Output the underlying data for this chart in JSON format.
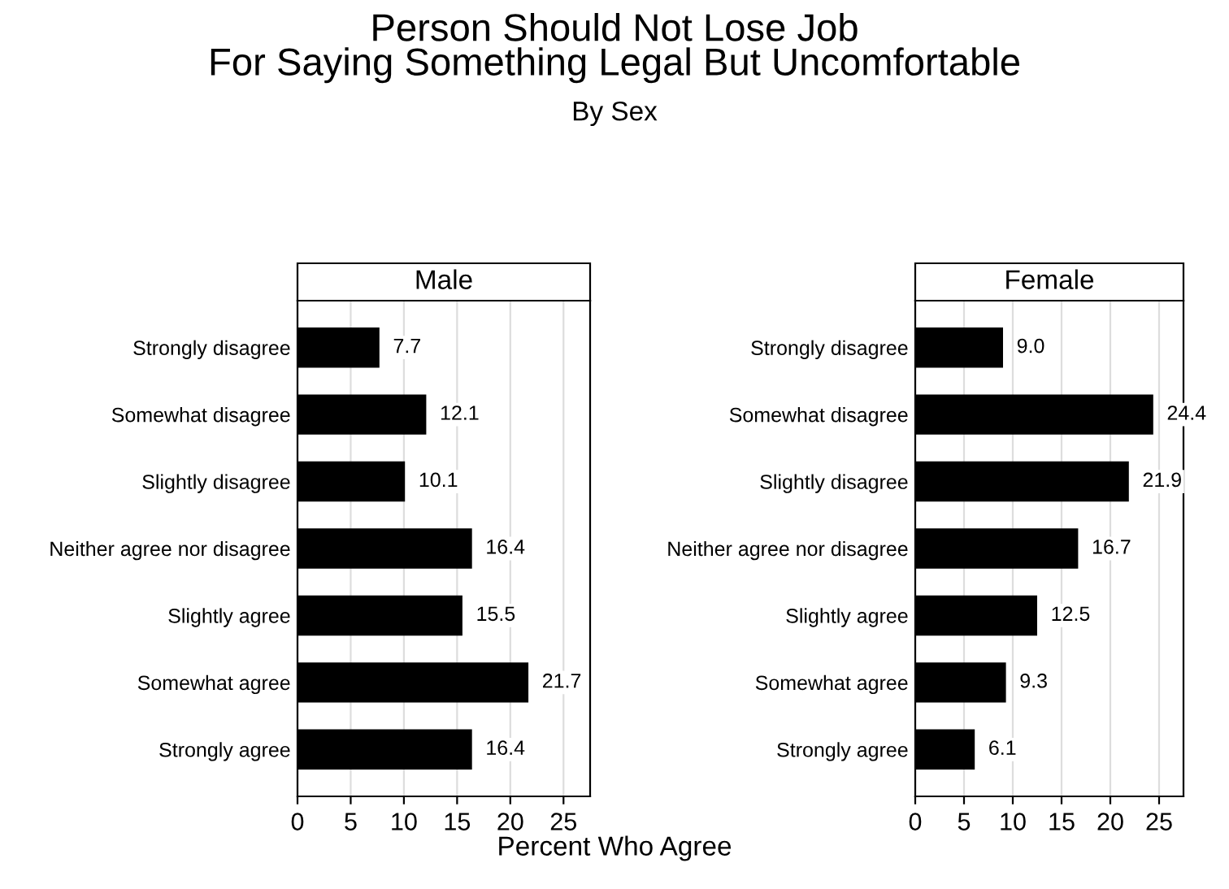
{
  "chart_data": [
    {
      "type": "other",
      "title": "Person Should Not Lose Job\nFor Saying Something Legal But Uncomfortable",
      "subtitle": "By Sex",
      "xlabel": "Percent Who Agree"
    },
    {
      "type": "bar",
      "orientation": "horizontal",
      "title": "Male",
      "categories": [
        "Strongly disagree",
        "Somewhat disagree",
        "Slightly disagree",
        "Neither agree nor disagree",
        "Slightly agree",
        "Somewhat agree",
        "Strongly agree"
      ],
      "values": [
        7.7,
        12.1,
        10.1,
        16.4,
        15.5,
        21.7,
        16.4
      ],
      "color": "#000000",
      "xlim": [
        0,
        27.5
      ],
      "xticks": [
        0,
        5,
        10,
        15,
        20,
        25
      ],
      "grid": "x",
      "data_labels": true
    },
    {
      "type": "bar",
      "orientation": "horizontal",
      "title": "Female",
      "categories": [
        "Strongly disagree",
        "Somewhat disagree",
        "Slightly disagree",
        "Neither agree nor disagree",
        "Slightly agree",
        "Somewhat agree",
        "Strongly agree"
      ],
      "values": [
        9.0,
        24.4,
        21.9,
        16.7,
        12.5,
        9.3,
        6.1
      ],
      "value_labels": [
        "9.0",
        "24.4",
        "21.9",
        "16.7",
        "12.5",
        "9.3",
        "6.1"
      ],
      "color": "#000000",
      "xlim": [
        0,
        27.5
      ],
      "xticks": [
        0,
        5,
        10,
        15,
        20,
        25
      ],
      "grid": "x"
    }
  ]
}
